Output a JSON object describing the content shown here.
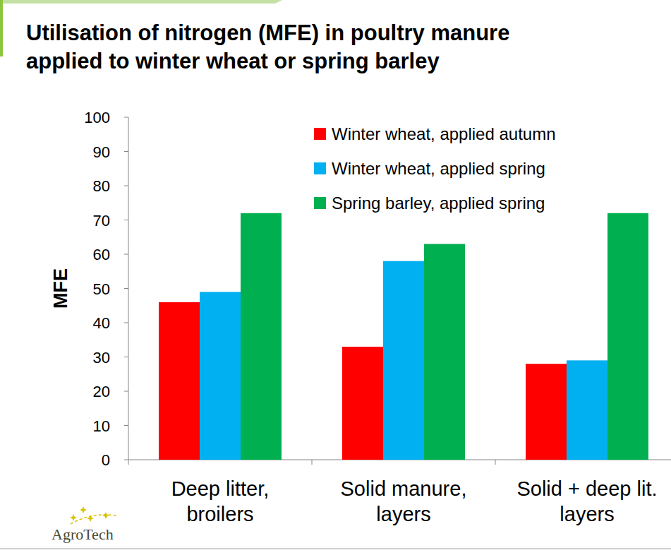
{
  "chart_data": {
    "type": "bar",
    "title": "Utilisation of nitrogen (MFE) in poultry manure\napplied to winter wheat or spring barley",
    "y_label": "MFE",
    "categories": [
      "Deep litter,\nbroilers",
      "Solid manure,\nlayers",
      "Solid + deep lit.\nlayers"
    ],
    "series": [
      {
        "name": "Winter wheat, applied autumn",
        "color": "#ff0000",
        "values": [
          46,
          33,
          28
        ]
      },
      {
        "name": "Winter wheat, applied spring",
        "color": "#00b0f0",
        "values": [
          49,
          58,
          29
        ]
      },
      {
        "name": "Spring barley, applied spring",
        "color": "#00b050",
        "values": [
          72,
          63,
          72
        ]
      }
    ],
    "ylim": [
      0,
      100
    ],
    "yticks": [
      0,
      10,
      20,
      30,
      40,
      50,
      60,
      70,
      80,
      90,
      100
    ],
    "grid": false,
    "legend": "top-right",
    "source": "AgroTech"
  }
}
